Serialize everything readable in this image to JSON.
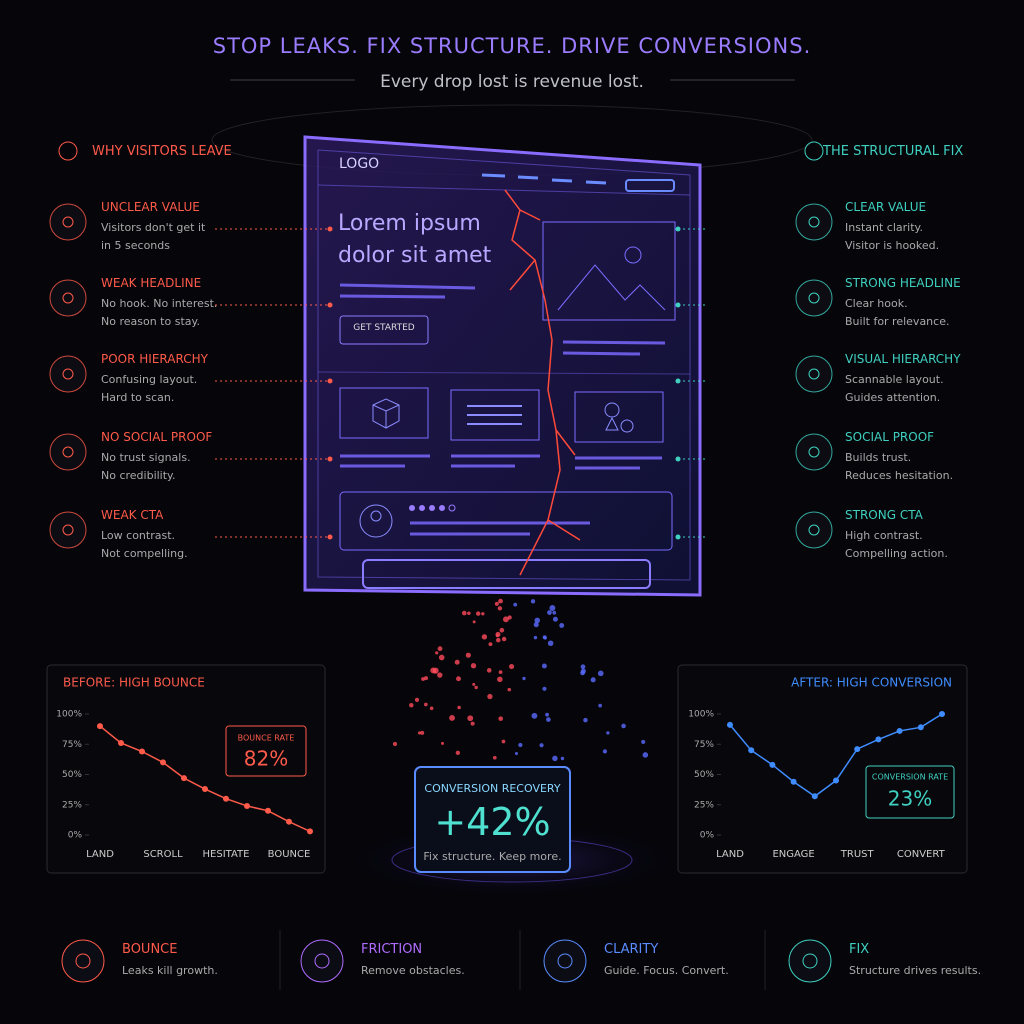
{
  "header": {
    "title": "STOP LEAKS. FIX STRUCTURE. DRIVE CONVERSIONS.",
    "subtitle": "Every drop lost is revenue lost."
  },
  "left_panel": {
    "heading": "WHY VISITORS LEAVE",
    "items": [
      {
        "title": "UNCLEAR VALUE",
        "lines": [
          "Visitors don't get it",
          "in 5 seconds"
        ]
      },
      {
        "title": "WEAK HEADLINE",
        "lines": [
          "No hook. No interest.",
          "No reason to stay."
        ]
      },
      {
        "title": "POOR HIERARCHY",
        "lines": [
          "Confusing layout.",
          "Hard to scan."
        ]
      },
      {
        "title": "NO SOCIAL PROOF",
        "lines": [
          "No trust signals.",
          "No credibility."
        ]
      },
      {
        "title": "WEAK CTA",
        "lines": [
          "Low contrast.",
          "Not compelling."
        ]
      }
    ]
  },
  "right_panel": {
    "heading": "THE STRUCTURAL FIX",
    "items": [
      {
        "title": "CLEAR VALUE",
        "lines": [
          "Instant clarity.",
          "Visitor is hooked."
        ]
      },
      {
        "title": "STRONG HEADLINE",
        "lines": [
          "Clear hook.",
          "Built for relevance."
        ]
      },
      {
        "title": "VISUAL HIERARCHY",
        "lines": [
          "Scannable layout.",
          "Guides attention."
        ]
      },
      {
        "title": "SOCIAL PROOF",
        "lines": [
          "Builds trust.",
          "Reduces hesitation."
        ]
      },
      {
        "title": "STRONG CTA",
        "lines": [
          "High contrast.",
          "Compelling action."
        ]
      }
    ]
  },
  "mockup": {
    "logo": "LOGO",
    "headline": [
      "Lorem ipsum",
      "dolor sit amet"
    ],
    "button": "GET STARTED"
  },
  "chart_data": [
    {
      "type": "line",
      "title": "BEFORE: HIGH BOUNCE",
      "color": "#ff5a4a",
      "categories": [
        "LAND",
        null,
        null,
        "SCROLL",
        null,
        null,
        "HESITATE",
        null,
        null,
        "BOUNCE",
        null
      ],
      "values": [
        90,
        76,
        69,
        60,
        47,
        38,
        30,
        24,
        20,
        11,
        3
      ],
      "ylim": [
        0,
        100
      ],
      "yticks": [
        {
          "value": 0,
          "label": "0%"
        },
        {
          "value": 25,
          "label": "25%"
        },
        {
          "value": 50,
          "label": "50%"
        },
        {
          "value": 75,
          "label": "75%"
        },
        {
          "value": 100,
          "label": "100%"
        }
      ],
      "annotation": {
        "label": "BOUNCE RATE",
        "text": "82%"
      }
    },
    {
      "type": "line",
      "title": "AFTER: HIGH CONVERSION",
      "color": "#3f8cff",
      "categories": [
        "LAND",
        null,
        null,
        "ENGAGE",
        null,
        null,
        "TRUST",
        null,
        null,
        "CONVERT",
        null
      ],
      "values": [
        91,
        70,
        58,
        44,
        32,
        45,
        71,
        79,
        86,
        89,
        100
      ],
      "ylim": [
        0,
        100
      ],
      "yticks": [
        {
          "value": 0,
          "label": "0%"
        },
        {
          "value": 25,
          "label": "25%"
        },
        {
          "value": 50,
          "label": "50%"
        },
        {
          "value": 75,
          "label": "75%"
        },
        {
          "value": 100,
          "label": "100%"
        }
      ],
      "annotation": {
        "label": "CONVERSION RATE",
        "text": "23%"
      }
    }
  ],
  "center_stat": {
    "label": "CONVERSION RECOVERY",
    "value": "+42%",
    "caption": "Fix structure. Keep more."
  },
  "footer": [
    {
      "title": "BOUNCE",
      "text": "Leaks kill growth."
    },
    {
      "title": "FRICTION",
      "text": "Remove obstacles."
    },
    {
      "title": "CLARITY",
      "text": "Guide. Focus. Convert."
    },
    {
      "title": "FIX",
      "text": "Structure drives results."
    }
  ]
}
